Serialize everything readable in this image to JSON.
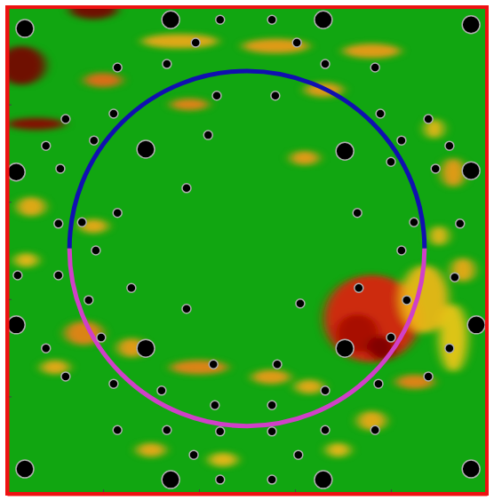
{
  "chart_data": {
    "type": "scatter",
    "xlim": [
      0,
      10
    ],
    "ylim": [
      0,
      10
    ],
    "xticks": [
      0,
      2,
      4,
      6,
      8,
      10
    ],
    "yticks": [
      0,
      2,
      4,
      6,
      8,
      10
    ],
    "tick_labels": false,
    "series": [
      {
        "color": "#000000",
        "marker": "circle",
        "x": [
          0.37,
          3.41,
          6.59,
          9.67,
          0.19,
          2.89,
          7.04,
          9.67,
          0.19,
          2.89,
          7.04,
          9.78,
          0.37,
          3.41,
          6.59,
          9.67,
          3.93,
          6.04,
          4.44,
          5.52,
          2.3,
          3.33,
          6.63,
          7.67,
          4.37,
          5.59,
          1.22,
          2.22,
          7.78,
          8.78,
          0.81,
          1.81,
          4.19,
          8.22,
          9.22,
          1.11,
          8.0,
          8.93,
          3.74,
          7.3,
          2.3,
          1.56,
          8.48,
          1.07,
          9.44,
          1.85,
          8.22,
          0.22,
          1.07,
          9.33,
          2.59,
          7.33,
          3.74,
          6.11,
          1.7,
          8.33,
          1.96,
          8.0,
          0.81,
          9.22,
          2.22,
          3.22,
          4.33,
          5.52,
          6.63,
          7.74,
          1.22,
          8.78,
          4.3,
          5.63,
          2.3,
          3.33,
          4.44,
          5.52,
          6.63,
          7.67,
          3.89,
          6.07,
          4.44,
          5.52
        ],
        "values": [
          9.56,
          9.74,
          9.74,
          9.64,
          6.61,
          7.08,
          7.04,
          6.64,
          3.47,
          2.99,
          2.99,
          3.47,
          0.51,
          0.29,
          0.29,
          0.51,
          9.27,
          9.27,
          9.74,
          9.74,
          8.76,
          8.83,
          8.83,
          8.76,
          8.18,
          8.18,
          7.7,
          7.81,
          7.81,
          7.7,
          7.15,
          7.26,
          7.37,
          7.26,
          7.15,
          6.68,
          6.82,
          6.68,
          6.28,
          5.77,
          5.77,
          5.58,
          5.58,
          5.55,
          5.55,
          5.0,
          5.0,
          4.49,
          4.49,
          4.45,
          4.23,
          4.23,
          3.8,
          3.91,
          3.98,
          3.98,
          3.21,
          3.21,
          2.99,
          2.99,
          2.26,
          2.12,
          1.82,
          1.82,
          2.12,
          2.26,
          2.41,
          2.41,
          2.66,
          2.66,
          1.31,
          1.31,
          1.28,
          1.28,
          1.31,
          1.31,
          0.8,
          0.8,
          0.29,
          0.29
        ],
        "size": [
          2,
          2,
          2,
          2,
          2,
          2,
          2,
          2,
          2,
          2,
          2,
          2,
          2,
          2,
          2,
          2,
          1,
          1,
          1,
          1,
          1,
          1,
          1,
          1,
          1,
          1,
          1,
          1,
          1,
          1,
          1,
          1,
          1,
          1,
          1,
          1,
          1,
          1,
          1,
          1,
          1,
          1,
          1,
          1,
          1,
          1,
          1,
          1,
          1,
          1,
          1,
          1,
          1,
          1,
          1,
          1,
          1,
          1,
          1,
          1,
          1,
          1,
          1,
          1,
          1,
          1,
          1,
          1,
          1,
          1,
          1,
          1,
          1,
          1,
          1,
          1,
          1,
          1,
          1,
          1
        ]
      }
    ],
    "heat": {
      "zlim": [
        0,
        1
      ],
      "x": [
        0.3,
        1.8,
        0.6,
        3.6,
        5.6,
        7.6,
        2.0,
        3.8,
        6.6,
        9.3,
        8.9,
        6.2,
        1.8,
        0.5,
        0.4,
        9.0,
        9.5,
        7.6,
        7.3,
        7.8,
        8.7,
        9.3,
        1.6,
        2.6,
        4.0,
        5.5,
        8.5,
        6.3,
        1.0,
        3.0,
        4.5,
        7.6,
        6.9
      ],
      "y": [
        8.8,
        9.95,
        7.6,
        9.3,
        9.2,
        9.1,
        8.5,
        8.0,
        8.3,
        6.6,
        7.5,
        6.9,
        5.5,
        5.9,
        4.8,
        5.3,
        4.6,
        3.6,
        3.3,
        3.0,
        4.0,
        3.2,
        3.3,
        3.0,
        2.6,
        2.4,
        2.3,
        2.2,
        2.6,
        0.9,
        0.7,
        1.5,
        0.9
      ],
      "w": [
        1.0,
        1.0,
        1.2,
        1.6,
        1.4,
        1.2,
        0.8,
        0.8,
        0.8,
        0.5,
        0.4,
        0.6,
        0.6,
        0.6,
        0.5,
        0.4,
        0.5,
        2.0,
        0.9,
        0.6,
        1.0,
        0.6,
        0.8,
        0.6,
        1.2,
        0.8,
        0.8,
        0.6,
        0.6,
        0.6,
        0.6,
        0.6,
        0.5
      ],
      "h": [
        0.8,
        0.4,
        0.25,
        0.3,
        0.3,
        0.3,
        0.3,
        0.25,
        0.3,
        0.6,
        0.4,
        0.3,
        0.3,
        0.4,
        0.3,
        0.4,
        0.5,
        1.8,
        0.8,
        0.5,
        1.4,
        1.4,
        0.5,
        0.4,
        0.3,
        0.3,
        0.3,
        0.3,
        0.3,
        0.3,
        0.3,
        0.4,
        0.3
      ],
      "values": [
        1.0,
        1.0,
        0.95,
        0.45,
        0.5,
        0.5,
        0.6,
        0.55,
        0.5,
        0.5,
        0.4,
        0.5,
        0.45,
        0.45,
        0.4,
        0.4,
        0.45,
        0.75,
        0.9,
        1.0,
        0.4,
        0.35,
        0.55,
        0.5,
        0.55,
        0.5,
        0.55,
        0.45,
        0.45,
        0.45,
        0.4,
        0.45,
        0.4
      ]
    },
    "arcs": [
      {
        "cx": 5.0,
        "cy": 5.04,
        "r": 3.7,
        "start": 0,
        "end": 180,
        "color": "#1010b0"
      },
      {
        "cx": 5.0,
        "cy": 5.04,
        "r": 3.7,
        "start": 180,
        "end": 360,
        "color": "#d040c8"
      }
    ]
  }
}
